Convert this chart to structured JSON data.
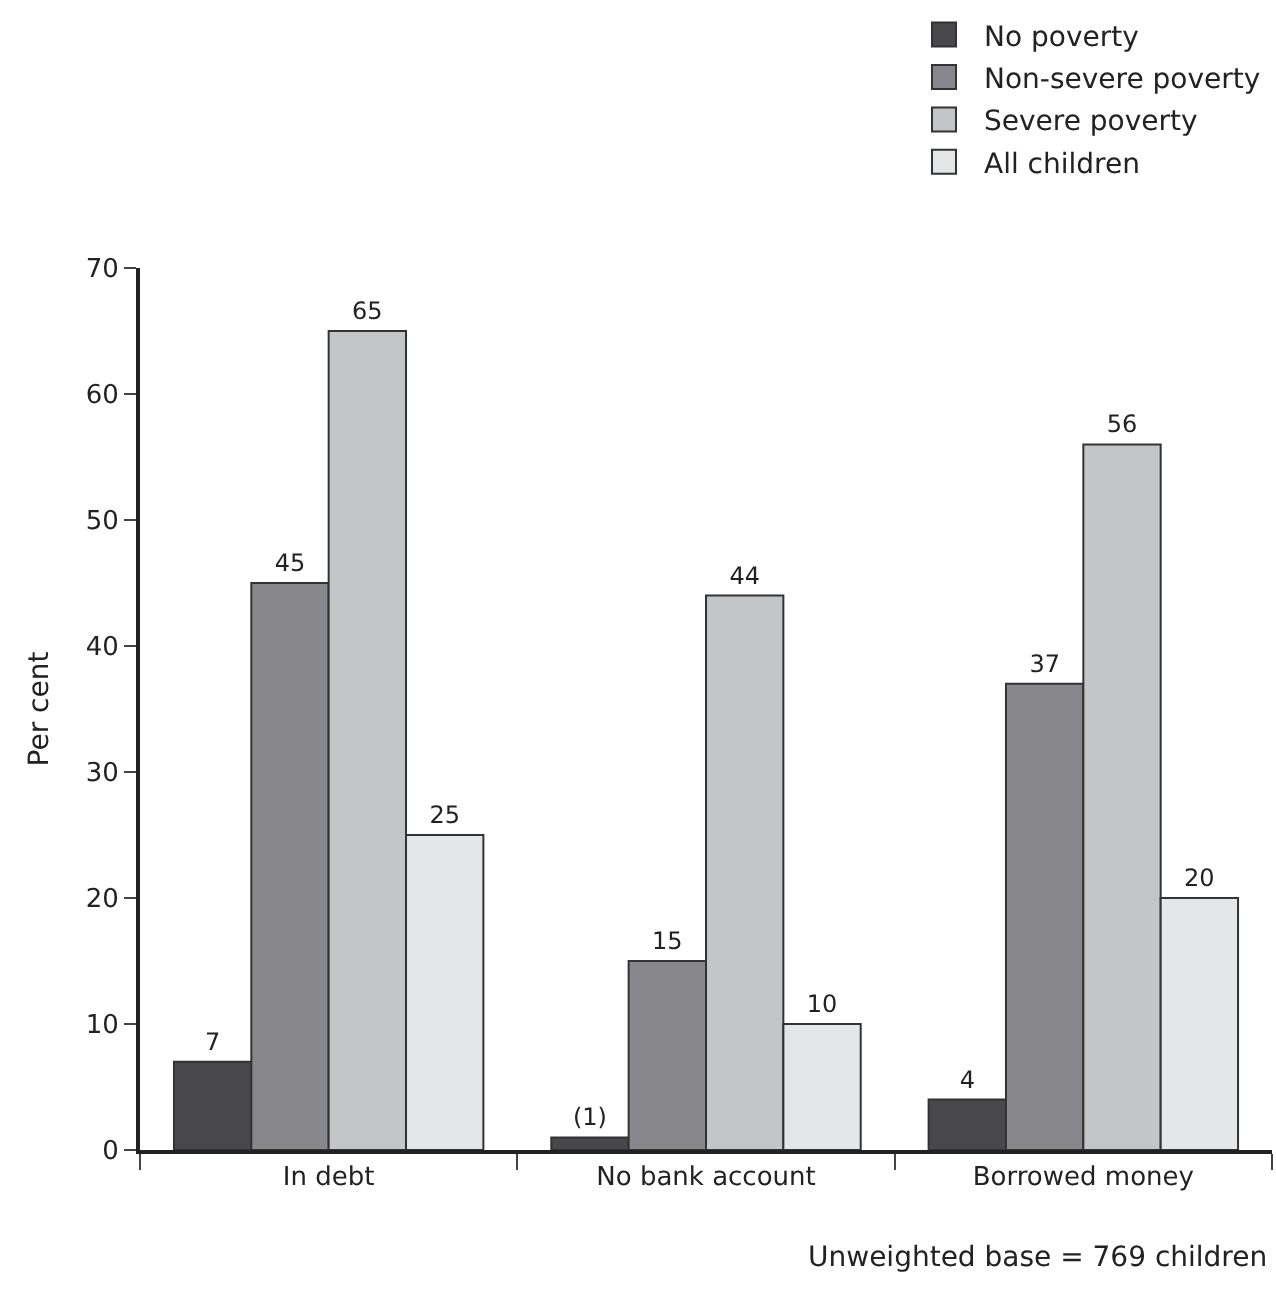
{
  "chart_data": {
    "type": "bar",
    "ylabel": "Per cent",
    "categories": [
      "In debt",
      "No bank account",
      "Borrowed money"
    ],
    "series": [
      {
        "name": "No poverty",
        "color": "#48484a",
        "values": [
          7,
          1,
          4
        ],
        "value_labels": [
          "7",
          "(1)",
          "4"
        ]
      },
      {
        "name": "Non-severe poverty",
        "color": "#88888c",
        "values": [
          45,
          15,
          37
        ],
        "value_labels": [
          "45",
          "15",
          "37"
        ]
      },
      {
        "name": "Severe poverty",
        "color": "#c4c5c7",
        "values": [
          65,
          44,
          56
        ],
        "value_labels": [
          "65",
          "44",
          "56"
        ]
      },
      {
        "name": "All children",
        "color": "#e5e6e8",
        "values": [
          25,
          10,
          20
        ],
        "value_labels": [
          "25",
          "10",
          "20"
        ]
      }
    ],
    "ylim": [
      0,
      70
    ],
    "yticks": [
      0,
      10,
      20,
      30,
      40,
      50,
      60,
      70
    ],
    "legend": "top right",
    "annotations": [
      "Unweighted base = 769 children"
    ]
  }
}
